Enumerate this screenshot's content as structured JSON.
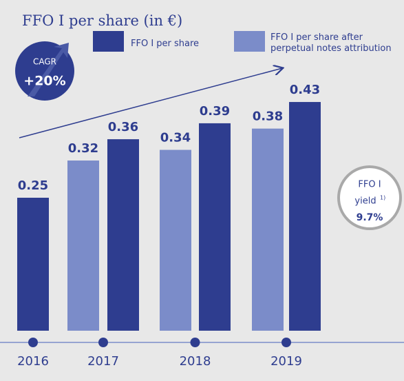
{
  "chart_data": {
    "type": "bar",
    "title": "FFO I per share (in €)",
    "categories": [
      "2016",
      "2017",
      "2018",
      "2019"
    ],
    "series": [
      {
        "name": "FFO I per share after perpetual notes attribution",
        "color": "#7b8cc9",
        "values": [
          null,
          0.32,
          0.34,
          0.38
        ]
      },
      {
        "name": "FFO I per share",
        "color": "#2e3d8f",
        "values": [
          0.25,
          0.36,
          0.39,
          0.43
        ]
      }
    ],
    "annotations": {
      "cagr_label": "CAGR",
      "cagr_value": "+20%",
      "yield_label": "FFO I",
      "yield_word": "yield",
      "yield_note": "1)",
      "yield_value": "9.7%"
    }
  }
}
